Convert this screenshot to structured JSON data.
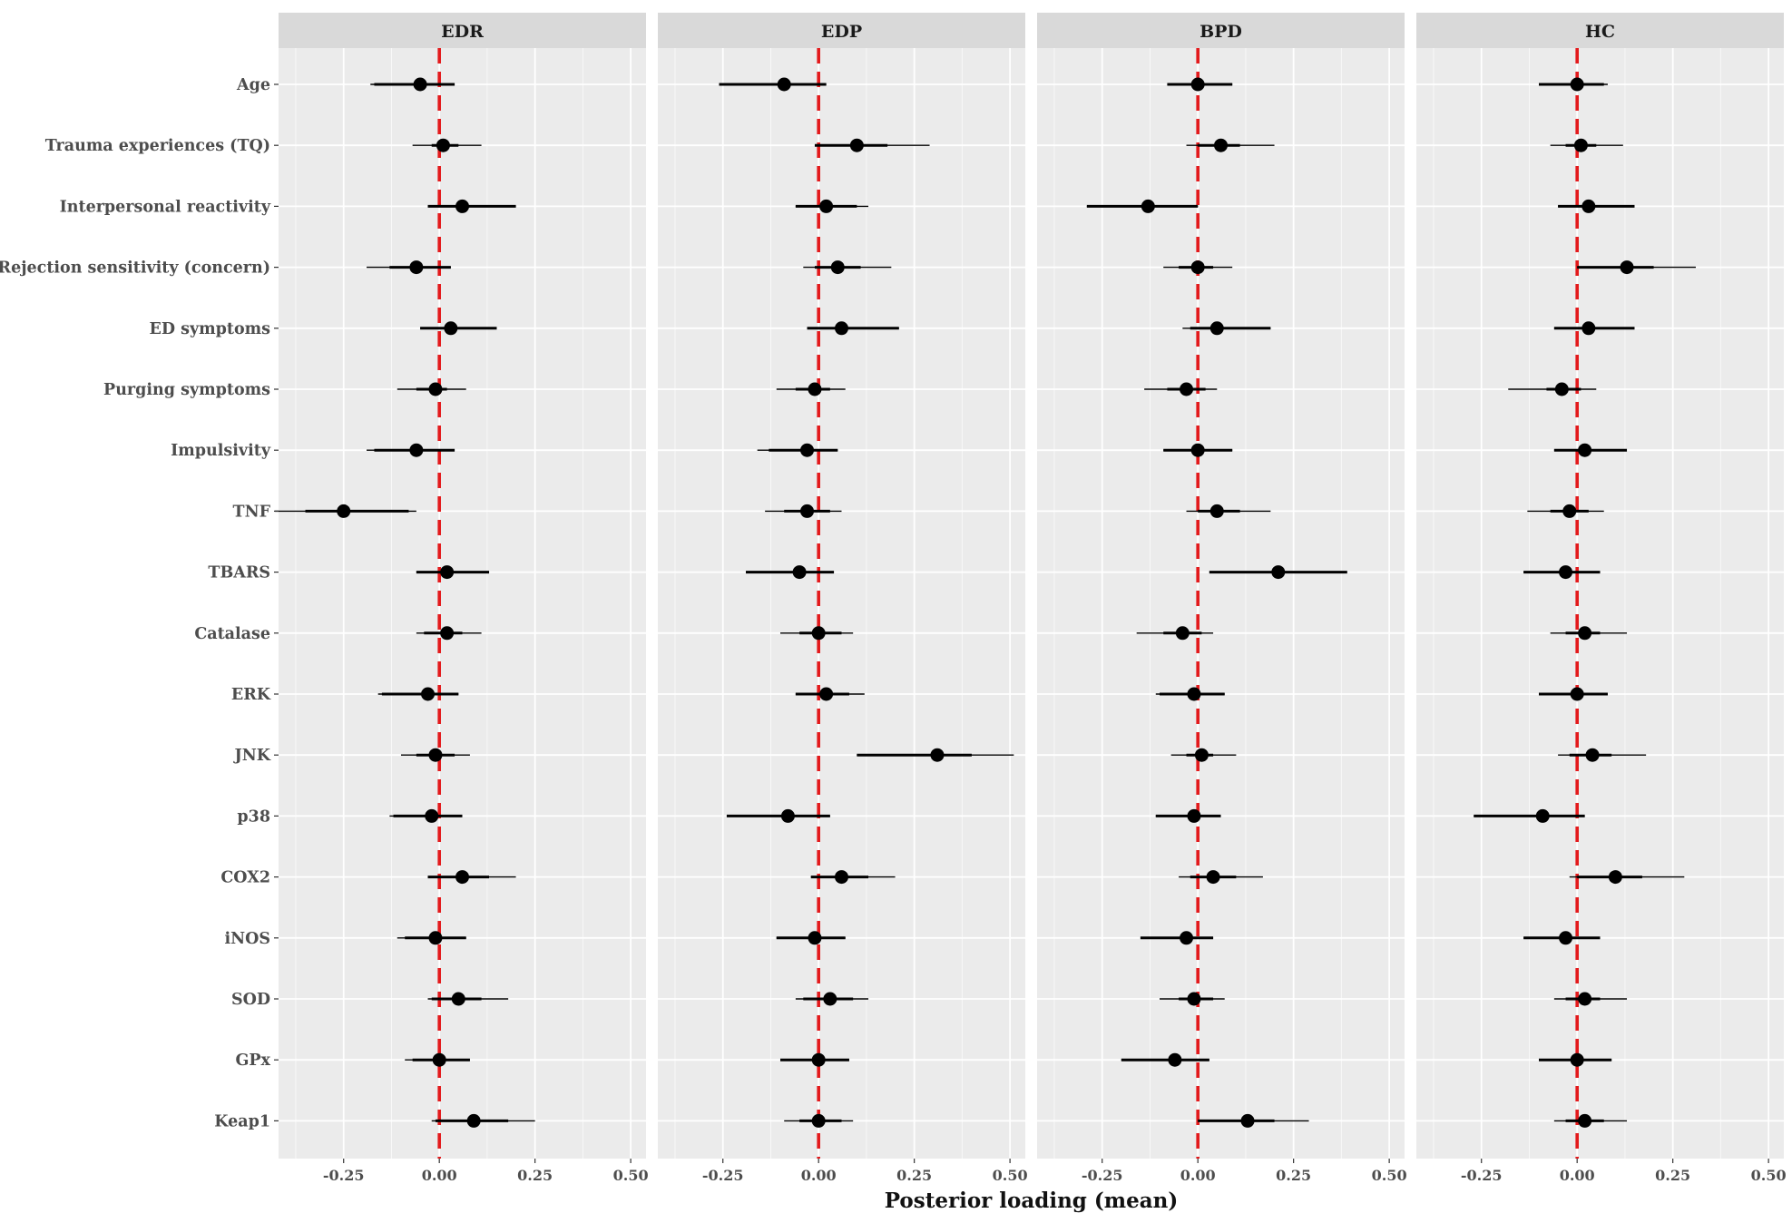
{
  "chart_data": {
    "type": "scatter",
    "title": "",
    "xlabel": "Posterior loading (mean)",
    "ylabel": "",
    "xlim": [
      -0.42,
      0.54
    ],
    "x_ticks": [
      -0.25,
      0.0,
      0.25,
      0.5
    ],
    "x_tick_labels": [
      "-0.25",
      "0.00",
      "0.25",
      "0.50"
    ],
    "reference_line": {
      "x": 0.0,
      "style": "dashed",
      "color": "#e31a1c"
    },
    "grid": true,
    "legend": "none",
    "colors": {
      "panel_bg": "#ebebeb",
      "grid": "#ffffff",
      "strip_bg": "#d9d9d9",
      "point": "#000000",
      "interval": "#000000",
      "reference": "#e31a1c"
    },
    "variables": [
      "Age",
      "Trauma experiences (TQ)",
      "Interpersonal reactivity",
      "Rejection sensitivity (concern)",
      "ED symptoms",
      "Purging symptoms",
      "Impulsivity",
      "TNF",
      "TBARS",
      "Catalase",
      "ERK",
      "JNK",
      "p38",
      "COX2",
      "iNOS",
      "SOD",
      "GPx",
      "Keap1"
    ],
    "panels": [
      {
        "name": "EDR",
        "mean": [
          -0.05,
          0.01,
          0.06,
          -0.06,
          0.03,
          -0.01,
          -0.06,
          -0.25,
          0.02,
          0.02,
          -0.03,
          -0.01,
          -0.02,
          0.06,
          -0.01,
          0.05,
          0.0,
          0.09
        ],
        "inner_lo": [
          -0.17,
          -0.02,
          -0.03,
          -0.13,
          -0.05,
          -0.06,
          -0.17,
          -0.35,
          -0.06,
          -0.04,
          -0.15,
          -0.06,
          -0.12,
          -0.03,
          -0.09,
          -0.02,
          -0.07,
          -0.01
        ],
        "inner_hi": [
          0.04,
          0.05,
          0.2,
          0.03,
          0.15,
          0.02,
          0.04,
          -0.08,
          0.13,
          0.06,
          0.05,
          0.04,
          0.06,
          0.13,
          0.07,
          0.11,
          0.08,
          0.18
        ],
        "outer_lo": [
          -0.18,
          -0.07,
          -0.03,
          -0.19,
          -0.05,
          -0.11,
          -0.19,
          -0.43,
          -0.06,
          -0.06,
          -0.16,
          -0.1,
          -0.13,
          -0.03,
          -0.11,
          -0.03,
          -0.09,
          -0.02
        ],
        "outer_hi": [
          0.04,
          0.11,
          0.2,
          0.03,
          0.15,
          0.07,
          0.04,
          -0.06,
          0.13,
          0.11,
          0.05,
          0.08,
          0.06,
          0.2,
          0.07,
          0.18,
          0.08,
          0.25
        ]
      },
      {
        "name": "EDP",
        "mean": [
          -0.09,
          0.1,
          0.02,
          0.05,
          0.06,
          -0.01,
          -0.03,
          -0.03,
          -0.05,
          0.0,
          0.02,
          0.31,
          -0.08,
          0.06,
          -0.01,
          0.03,
          0.0,
          0.0
        ],
        "inner_lo": [
          -0.26,
          -0.01,
          -0.06,
          -0.01,
          -0.03,
          -0.06,
          -0.13,
          -0.09,
          -0.19,
          -0.05,
          -0.06,
          0.1,
          -0.24,
          -0.02,
          -0.11,
          -0.04,
          -0.1,
          -0.05
        ],
        "inner_hi": [
          0.02,
          0.18,
          0.1,
          0.11,
          0.21,
          0.03,
          0.05,
          0.03,
          0.04,
          0.06,
          0.08,
          0.4,
          0.03,
          0.13,
          0.07,
          0.09,
          0.08,
          0.06
        ],
        "outer_lo": [
          -0.26,
          -0.01,
          -0.06,
          -0.04,
          -0.03,
          -0.11,
          -0.16,
          -0.14,
          -0.19,
          -0.1,
          -0.06,
          0.1,
          -0.24,
          -0.02,
          -0.11,
          -0.06,
          -0.1,
          -0.09
        ],
        "outer_hi": [
          0.02,
          0.29,
          0.13,
          0.19,
          0.21,
          0.07,
          0.05,
          0.06,
          0.04,
          0.09,
          0.12,
          0.51,
          0.03,
          0.2,
          0.07,
          0.13,
          0.08,
          0.09
        ]
      },
      {
        "name": "BPD",
        "mean": [
          0.0,
          0.06,
          -0.13,
          0.0,
          0.05,
          -0.03,
          0.0,
          0.05,
          0.21,
          -0.04,
          -0.01,
          0.01,
          -0.01,
          0.04,
          -0.03,
          -0.01,
          -0.06,
          0.13
        ],
        "inner_lo": [
          -0.08,
          0.0,
          -0.29,
          -0.05,
          -0.02,
          -0.08,
          -0.09,
          0.0,
          0.03,
          -0.09,
          -0.1,
          -0.03,
          -0.11,
          -0.02,
          -0.15,
          -0.05,
          -0.2,
          0.0
        ],
        "inner_hi": [
          0.09,
          0.11,
          0.0,
          0.04,
          0.19,
          0.02,
          0.09,
          0.11,
          0.39,
          0.01,
          0.07,
          0.04,
          0.06,
          0.1,
          0.04,
          0.04,
          0.03,
          0.2
        ],
        "outer_lo": [
          -0.08,
          -0.03,
          -0.29,
          -0.09,
          -0.04,
          -0.14,
          -0.09,
          -0.03,
          0.03,
          -0.16,
          -0.11,
          -0.07,
          -0.11,
          -0.05,
          -0.15,
          -0.1,
          -0.2,
          0.0
        ],
        "outer_hi": [
          0.09,
          0.2,
          0.0,
          0.09,
          0.19,
          0.05,
          0.09,
          0.19,
          0.39,
          0.04,
          0.07,
          0.1,
          0.06,
          0.17,
          0.04,
          0.07,
          0.03,
          0.29
        ]
      },
      {
        "name": "HC",
        "mean": [
          0.0,
          0.01,
          0.03,
          0.13,
          0.03,
          -0.04,
          0.02,
          -0.02,
          -0.03,
          0.02,
          0.0,
          0.04,
          -0.09,
          0.1,
          -0.03,
          0.02,
          0.0,
          0.02
        ],
        "inner_lo": [
          -0.1,
          -0.03,
          -0.05,
          0.0,
          -0.06,
          -0.08,
          -0.06,
          -0.07,
          -0.14,
          -0.03,
          -0.1,
          -0.02,
          -0.27,
          0.0,
          -0.14,
          -0.03,
          -0.1,
          -0.03
        ],
        "inner_hi": [
          0.07,
          0.05,
          0.15,
          0.2,
          0.15,
          0.01,
          0.13,
          0.03,
          0.06,
          0.06,
          0.08,
          0.09,
          0.02,
          0.17,
          0.06,
          0.06,
          0.09,
          0.07
        ],
        "outer_lo": [
          -0.1,
          -0.07,
          -0.05,
          0.0,
          -0.06,
          -0.18,
          -0.06,
          -0.13,
          -0.14,
          -0.07,
          -0.1,
          -0.05,
          -0.27,
          -0.02,
          -0.14,
          -0.06,
          -0.1,
          -0.06
        ],
        "outer_hi": [
          0.08,
          0.12,
          0.15,
          0.31,
          0.15,
          0.05,
          0.13,
          0.07,
          0.06,
          0.13,
          0.08,
          0.18,
          0.02,
          0.28,
          0.06,
          0.13,
          0.09,
          0.13
        ]
      }
    ]
  }
}
